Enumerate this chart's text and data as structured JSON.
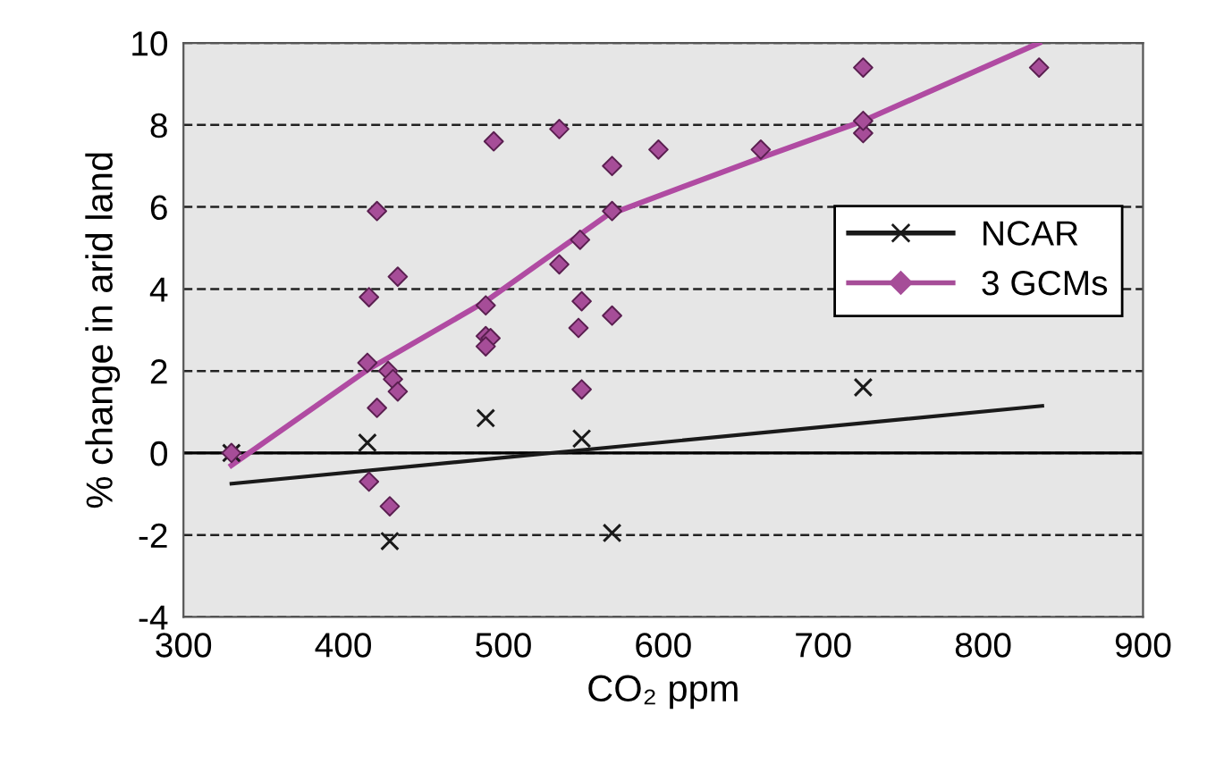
{
  "chart_data": {
    "type": "line",
    "xlabel": "CO₂ ppm",
    "ylabel": "% change in arid land",
    "xlim": [
      300,
      900
    ],
    "xticks": [
      300,
      400,
      500,
      600,
      700,
      800,
      900
    ],
    "ylim": [
      -4,
      10
    ],
    "yticks": [
      -4,
      -2,
      0,
      2,
      4,
      6,
      8,
      10
    ],
    "grid": "y",
    "legend": "right",
    "ref_lines": [
      {
        "axis": "y",
        "value": 0,
        "label": null,
        "color": "#000000",
        "line_style": "solid"
      }
    ],
    "series": [
      {
        "name": "NCAR",
        "type": "scatter",
        "marker": "cross",
        "color": "#1a1a1a",
        "x": [
          330,
          415,
          489,
          429,
          549,
          568,
          725
        ],
        "values": [
          0,
          0.25,
          0.85,
          -2.15,
          0.35,
          -1.95,
          1.6
        ]
      },
      {
        "name": "3 GCMs",
        "type": "scatter",
        "marker": "diamond",
        "color": "#a64d98",
        "x": [
          330,
          421,
          416,
          434,
          415,
          428,
          431,
          434,
          421,
          416,
          429,
          494,
          535,
          489,
          489,
          492,
          489,
          535,
          548,
          549,
          547,
          549,
          568,
          568,
          568,
          597,
          661,
          725,
          725,
          725,
          835
        ],
        "values": [
          0,
          5.9,
          3.8,
          4.3,
          2.2,
          2.0,
          1.8,
          1.5,
          1.1,
          -0.7,
          -1.3,
          7.6,
          7.9,
          3.6,
          2.85,
          2.8,
          2.6,
          4.6,
          5.2,
          3.7,
          3.05,
          1.55,
          7.0,
          5.9,
          3.35,
          7.4,
          7.4,
          9.4,
          7.8,
          8.1,
          9.4
        ]
      },
      {
        "color": "#1a1a1a",
        "x": [
          330,
          837
        ],
        "values": [
          -0.75,
          1.15
        ]
      },
      {
        "color": "#b04ba2",
        "x": [
          330,
          416,
          489,
          565,
          661,
          725,
          835
        ],
        "values": [
          -0.3,
          2.05,
          3.7,
          5.8,
          7.2,
          8.1,
          10.0
        ]
      }
    ]
  }
}
